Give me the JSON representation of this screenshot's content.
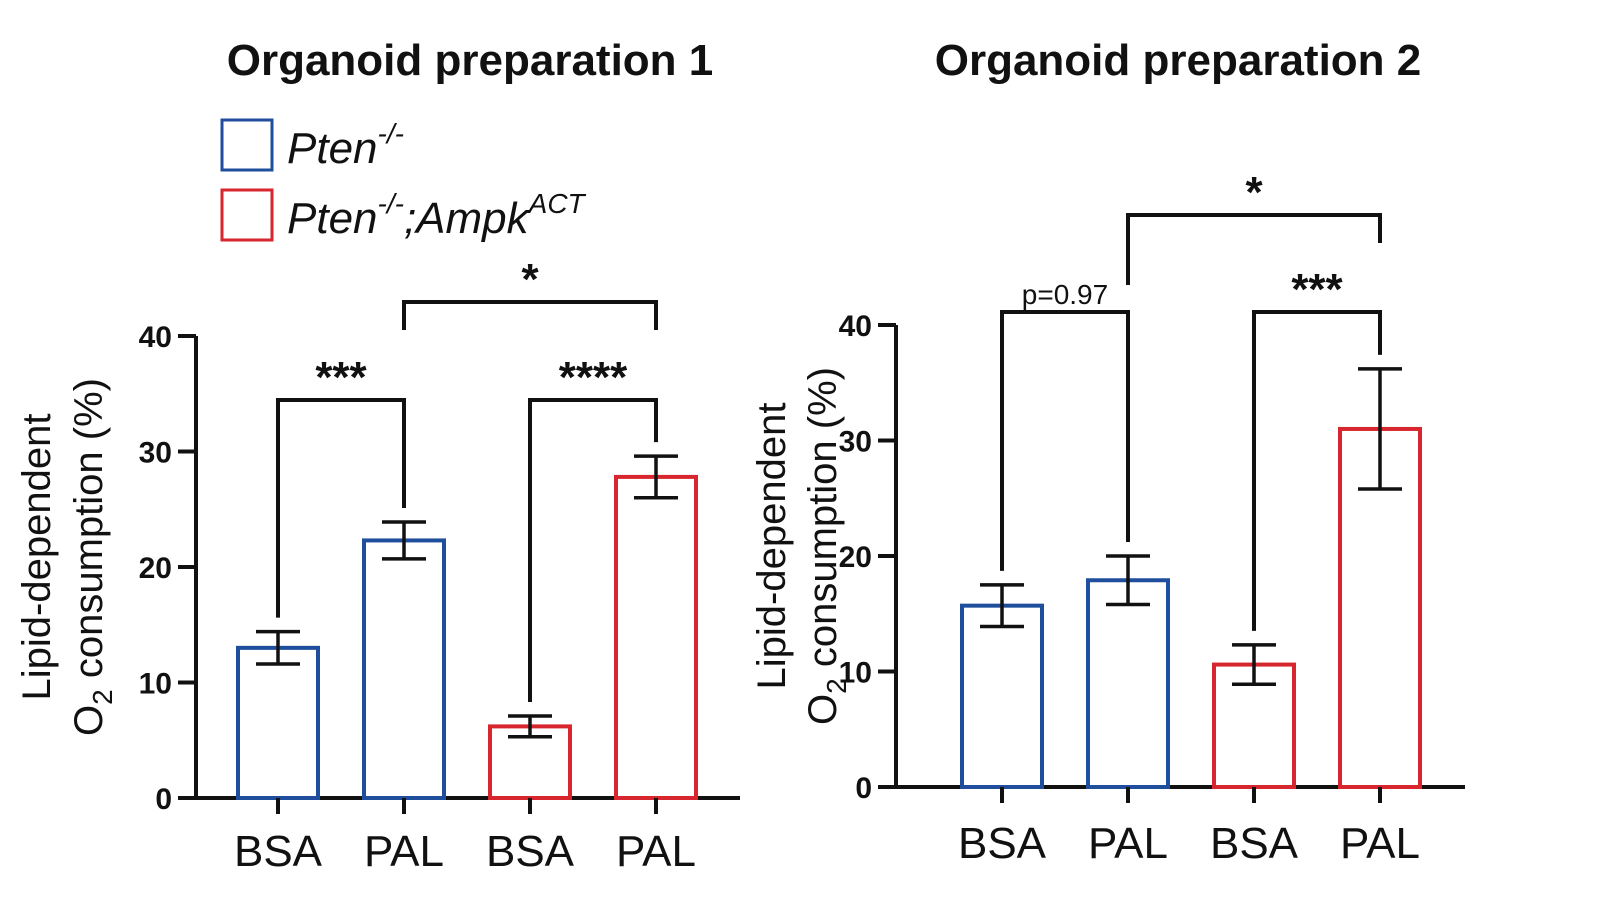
{
  "colors": {
    "blue": "#1f4e9c",
    "red": "#d7262e",
    "axis": "#111111"
  },
  "legend": {
    "items": [
      {
        "base": "Pten",
        "sup": "-/-",
        "mid": "",
        "sup2": "",
        "color": "#1f4e9c"
      },
      {
        "base": "Pten",
        "sup": "-/-",
        "mid": ";Ampk",
        "sup2": "ACT",
        "color": "#d7262e"
      }
    ]
  },
  "chart_data": [
    {
      "type": "bar",
      "title": "Organoid preparation 1",
      "ylabel_line1": "Lipid-dependent",
      "ylabel_line2_pre": "O",
      "ylabel_line2_sub": "2",
      "ylabel_line2_post": " consumption (%)",
      "ylim": [
        0,
        40
      ],
      "yticks": [
        "0",
        "10",
        "20",
        "30",
        "40"
      ],
      "categories": [
        "BSA",
        "PAL",
        "BSA",
        "PAL"
      ],
      "values": [
        13,
        22.3,
        6.2,
        27.8
      ],
      "errors": [
        1.4,
        1.6,
        0.9,
        1.8
      ],
      "bar_colors": [
        "#1f4e9c",
        "#1f4e9c",
        "#d7262e",
        "#d7262e"
      ],
      "comparisons": [
        {
          "from": 0,
          "to": 1,
          "label": "***",
          "level": 0
        },
        {
          "from": 2,
          "to": 3,
          "label": "****",
          "level": 0
        },
        {
          "from": 1,
          "to": 3,
          "label": "*",
          "level": 1
        }
      ]
    },
    {
      "type": "bar",
      "title": "Organoid preparation 2",
      "ylabel_line1": "Lipid-dependent",
      "ylabel_line2_pre": "O",
      "ylabel_line2_sub": "2",
      "ylabel_line2_post": " consumption (%)",
      "ylim": [
        0,
        40
      ],
      "yticks": [
        "0",
        "10",
        "20",
        "30",
        "40"
      ],
      "categories": [
        "BSA",
        "PAL",
        "BSA",
        "PAL"
      ],
      "values": [
        15.7,
        17.9,
        10.6,
        31
      ],
      "errors": [
        1.8,
        2.1,
        1.7,
        5.2
      ],
      "bar_colors": [
        "#1f4e9c",
        "#1f4e9c",
        "#d7262e",
        "#d7262e"
      ],
      "comparisons": [
        {
          "from": 0,
          "to": 1,
          "label": "p=0.97",
          "level": 0
        },
        {
          "from": 2,
          "to": 3,
          "label": "***",
          "level": 0
        },
        {
          "from": 1,
          "to": 3,
          "label": "*",
          "level": 1
        }
      ]
    }
  ]
}
